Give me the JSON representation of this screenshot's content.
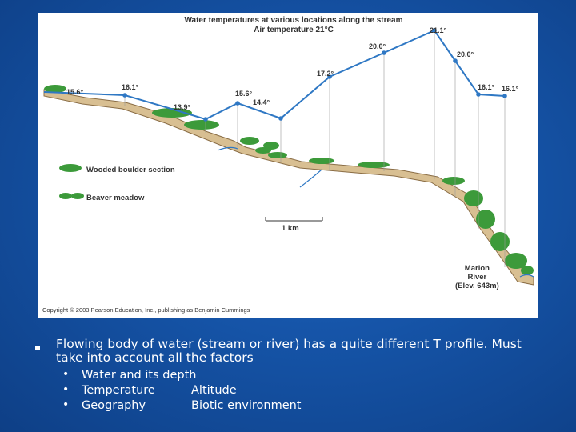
{
  "figure": {
    "title": "Water temperatures at various locations along the stream",
    "subtitle": "Air temperature 21°C",
    "temperatures": [
      "15.6°",
      "16.1°",
      "13.9°",
      "15.6°",
      "14.4°",
      "17.2°",
      "20.0°",
      "21.1°",
      "20.0°",
      "16.1°",
      "16.1°"
    ],
    "legend": {
      "wooded": "Wooded boulder section",
      "meadow": "Beaver meadow"
    },
    "scale_label": "1 km",
    "marion_lines": [
      "Marion",
      "River",
      "(Elev. 643m)"
    ],
    "copyright": "Copyright © 2003 Pearson Education, Inc., publishing as Benjamin Cummings",
    "colors": {
      "line": "#2f78c4",
      "tree": "#3c9a3a",
      "ground": "#c9a978"
    }
  },
  "text": {
    "main": "Flowing body of water (stream or river) has a quite different T profile. Must take into account all the factors",
    "subs": [
      {
        "left": "Water and its depth",
        "right": ""
      },
      {
        "left": "Temperature",
        "right": "Altitude"
      },
      {
        "left": "Geography",
        "right": "Biotic environment"
      }
    ]
  }
}
